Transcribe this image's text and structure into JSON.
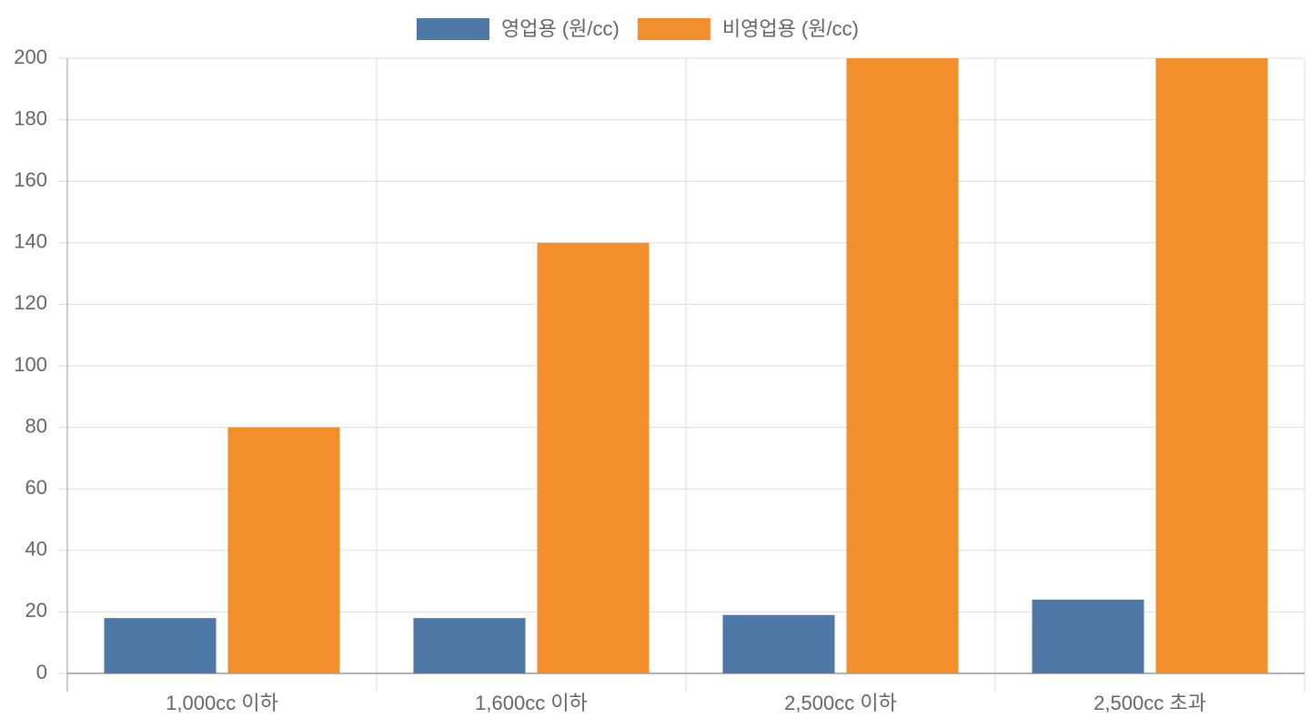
{
  "chart_data": {
    "type": "bar",
    "categories": [
      "1,000cc 이하",
      "1,600cc 이하",
      "2,500cc 이하",
      "2,500cc 초과"
    ],
    "series": [
      {
        "name": "영업용 (원/cc)",
        "color": "#4e79a7",
        "values": [
          18,
          18,
          19,
          24
        ]
      },
      {
        "name": "비영업용 (원/cc)",
        "color": "#f28e2c",
        "values": [
          80,
          140,
          200,
          200
        ]
      }
    ],
    "ylim": [
      0,
      200
    ],
    "yticks": [
      0,
      20,
      40,
      60,
      80,
      100,
      120,
      140,
      160,
      180,
      200
    ],
    "grid": true,
    "legend": "top"
  }
}
